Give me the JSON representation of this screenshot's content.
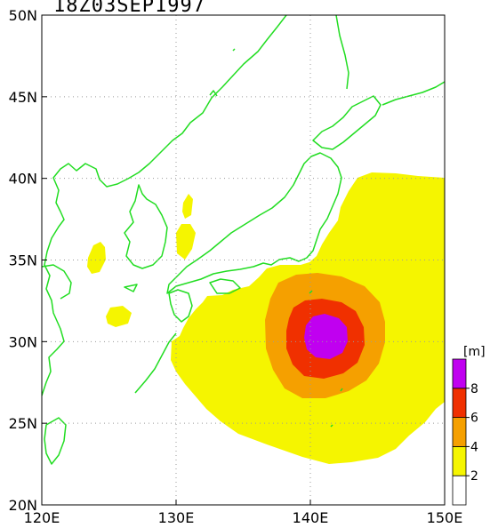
{
  "map": {
    "title": "18Z03SEP1997",
    "lon_ticks": [
      {
        "value": 120,
        "label": "120E"
      },
      {
        "value": 130,
        "label": "130E"
      },
      {
        "value": 140,
        "label": "140E"
      },
      {
        "value": 150,
        "label": "150E"
      }
    ],
    "lat_ticks": [
      {
        "value": 20,
        "label": "20N"
      },
      {
        "value": 25,
        "label": "25N"
      },
      {
        "value": 30,
        "label": "30N"
      },
      {
        "value": 35,
        "label": "35N"
      },
      {
        "value": 40,
        "label": "40N"
      },
      {
        "value": 45,
        "label": "45N"
      },
      {
        "value": 50,
        "label": "50N"
      }
    ],
    "coast_color": "#22dd22",
    "grid": true
  },
  "colorbar": {
    "unit": "[m]",
    "levels": [
      0,
      2,
      4,
      6,
      8,
      10
    ],
    "labels": [
      "2",
      "4",
      "6",
      "8"
    ],
    "colors": [
      "#ffffff",
      "#f5f500",
      "#f5a000",
      "#f03000",
      "#c000f0"
    ]
  }
}
